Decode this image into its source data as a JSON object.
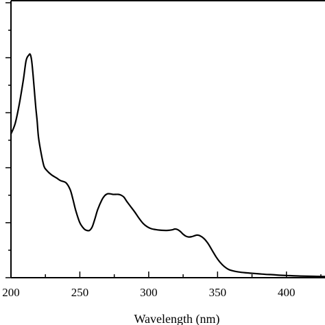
{
  "chart_data": {
    "type": "line",
    "title": "",
    "xlabel": "Wavelength (nm)",
    "ylabel": "",
    "xlim": [
      200,
      428
    ],
    "ylim": [
      0,
      1.01
    ],
    "x_ticks": [
      200,
      250,
      300,
      350,
      400
    ],
    "x_tick_labels": [
      "200",
      "250",
      "300",
      "350",
      "400"
    ],
    "y_major_ticks": [
      0,
      0.2,
      0.4,
      0.6,
      0.8,
      1.0
    ],
    "y_minor_ticks": [
      0.1,
      0.3,
      0.5,
      0.7,
      0.9
    ],
    "grid": false,
    "legend": "none",
    "line_color": "#000000",
    "series": [
      {
        "x": [
          200,
          203,
          206,
          209,
          211,
          213,
          214,
          215,
          216,
          217,
          218,
          219,
          220,
          222,
          224,
          226,
          228,
          230,
          233,
          236,
          240,
          243,
          245,
          247,
          250,
          253,
          255,
          257,
          259,
          261,
          263,
          266,
          268,
          270,
          272,
          274,
          276,
          278,
          280,
          282,
          284,
          287,
          290,
          293,
          296,
          299,
          302,
          305,
          308,
          311,
          314,
          317,
          319,
          321,
          323,
          325,
          327,
          329,
          331,
          333,
          335,
          337,
          340,
          343,
          346,
          349,
          352,
          355,
          358,
          361,
          365,
          370,
          375,
          380,
          385,
          390,
          395,
          400,
          410,
          420,
          428
        ],
        "y": [
          0.523,
          0.56,
          0.63,
          0.72,
          0.79,
          0.81,
          0.812,
          0.79,
          0.74,
          0.68,
          0.62,
          0.57,
          0.51,
          0.45,
          0.405,
          0.39,
          0.38,
          0.372,
          0.363,
          0.353,
          0.345,
          0.32,
          0.285,
          0.245,
          0.2,
          0.178,
          0.172,
          0.172,
          0.185,
          0.215,
          0.248,
          0.283,
          0.298,
          0.305,
          0.305,
          0.303,
          0.303,
          0.303,
          0.3,
          0.293,
          0.278,
          0.258,
          0.238,
          0.216,
          0.197,
          0.185,
          0.178,
          0.175,
          0.173,
          0.172,
          0.172,
          0.174,
          0.177,
          0.175,
          0.168,
          0.158,
          0.151,
          0.148,
          0.149,
          0.152,
          0.155,
          0.153,
          0.143,
          0.125,
          0.1,
          0.075,
          0.055,
          0.04,
          0.03,
          0.025,
          0.021,
          0.018,
          0.016,
          0.014,
          0.012,
          0.011,
          0.009,
          0.008,
          0.006,
          0.005,
          0.004
        ]
      }
    ]
  }
}
